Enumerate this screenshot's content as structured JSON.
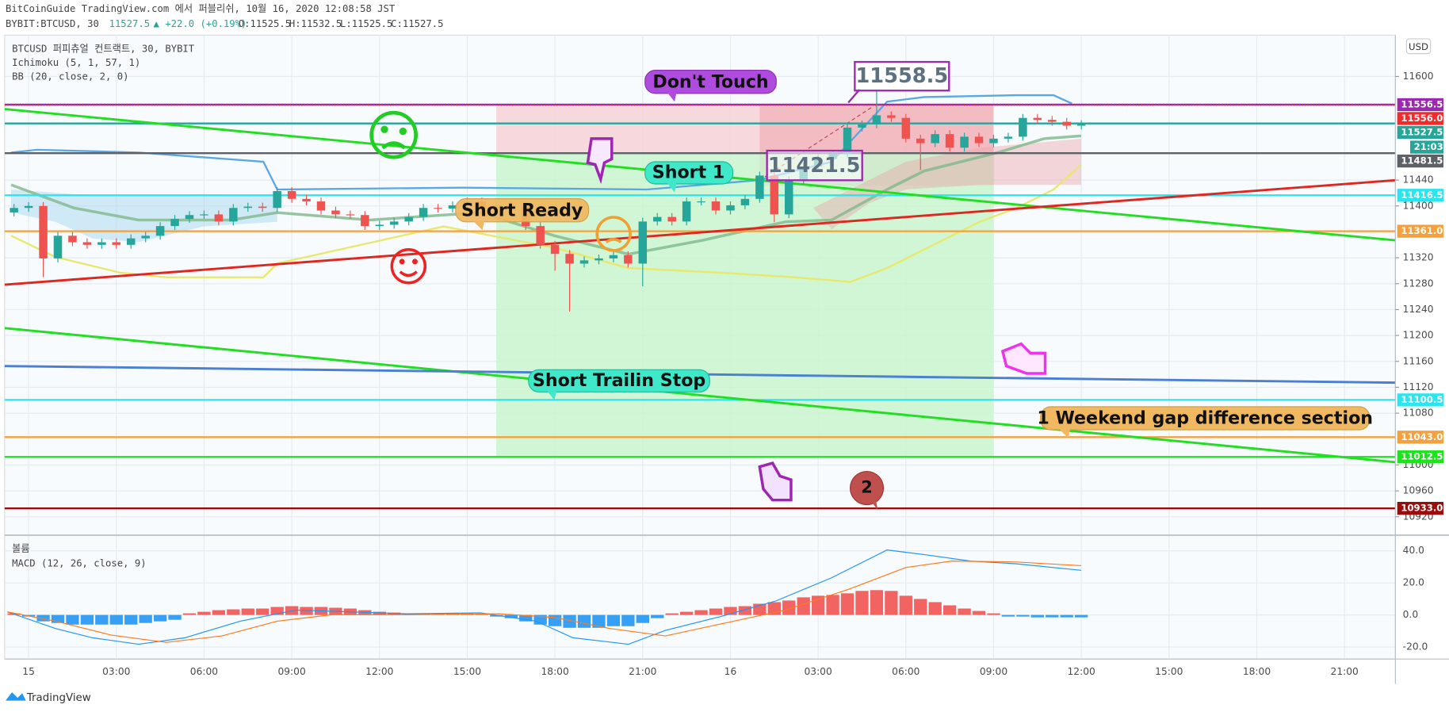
{
  "header": {
    "line1": "BitCoinGuide TradingView.com 에서 퍼블리쉬, 10월 16, 2020 12:08:58 JST",
    "symbol": "BYBIT:BTCUSD, 30",
    "price": "11527.5",
    "change": "▲ +22.0 (+0.19%)",
    "ohlc": [
      "O:11525.5",
      "H:11532.5",
      "L:11525.5",
      "C:11527.5"
    ]
  },
  "footer": {
    "brand": "TradingView"
  },
  "chart_data": [
    {
      "type": "candlestick",
      "title": "BTCUSD 퍼피츄얼 컨트랙트, 30, BYBIT",
      "indicators": [
        "Ichimoku (5, 1, 57, 1)",
        "BB (20, close, 2, 0)"
      ],
      "currency": "USD",
      "countdown": "21:03",
      "color_up": "#26a69a",
      "color_down": "#ef5350",
      "grid": true,
      "x": [
        -0.5,
        0,
        0.5,
        1,
        1.5,
        2,
        2.5,
        3,
        3.5,
        4,
        4.5,
        5,
        5.5,
        6,
        6.5,
        7,
        7.5,
        8,
        8.5,
        9,
        9.5,
        10,
        10.5,
        11,
        11.5,
        12,
        12.5,
        13,
        13.5,
        14,
        14.5,
        15,
        15.5,
        16,
        16.5,
        17,
        17.5,
        18,
        18.5,
        19,
        19.5,
        20,
        20.5,
        21,
        21.5,
        22,
        22.5,
        23,
        23.5,
        24,
        24.5,
        25,
        25.5,
        26,
        26.5,
        27,
        27.5,
        28,
        28.5,
        29,
        29.5,
        30,
        30.5,
        31,
        31.5,
        32,
        32.5,
        33,
        33.5,
        34,
        34.5,
        35,
        35.5,
        36
      ],
      "open": [
        11390,
        11397,
        11400,
        11319,
        11354,
        11344,
        11340,
        11344,
        11340,
        11350,
        11354,
        11369,
        11380,
        11386,
        11387,
        11376,
        11397,
        11399,
        11397,
        11423,
        11411,
        11407,
        11393,
        11387,
        11386,
        11369,
        11371,
        11376,
        11383,
        11397,
        11396,
        11401,
        11407,
        11397,
        11401,
        11399,
        11369,
        11340,
        11326,
        11311,
        11316,
        11319,
        11324,
        11311,
        11376,
        11383,
        11376,
        11407,
        11407,
        11393,
        11401,
        11411,
        11447,
        11387,
        11440,
        11461,
        11473,
        11480,
        11521,
        11526,
        11540,
        11536,
        11504,
        11497,
        11511,
        11490,
        11507,
        11497,
        11504,
        11507,
        11536,
        11533,
        11530,
        11524
      ],
      "high": [
        11403,
        11406,
        11406,
        11360,
        11360,
        11350,
        11350,
        11350,
        11356,
        11360,
        11375,
        11386,
        11392,
        11393,
        11393,
        11403,
        11405,
        11405,
        11429,
        11429,
        11417,
        11413,
        11399,
        11393,
        11392,
        11377,
        11382,
        11389,
        11403,
        11403,
        11407,
        11413,
        11413,
        11407,
        11407,
        11405,
        11375,
        11346,
        11332,
        11322,
        11325,
        11330,
        11330,
        11382,
        11389,
        11389,
        11413,
        11413,
        11413,
        11407,
        11417,
        11453,
        11453,
        11446,
        11467,
        11479,
        11486,
        11527,
        11532,
        11620,
        11546,
        11542,
        11510,
        11517,
        11517,
        11513,
        11513,
        11510,
        11513,
        11542,
        11542,
        11539,
        11536,
        11532.5
      ],
      "low": [
        11384,
        11391,
        11290,
        11313,
        11338,
        11334,
        11334,
        11334,
        11334,
        11344,
        11348,
        11363,
        11374,
        11380,
        11370,
        11370,
        11391,
        11391,
        11391,
        11405,
        11401,
        11387,
        11381,
        11380,
        11363,
        11363,
        11365,
        11370,
        11377,
        11390,
        11390,
        11395,
        11391,
        11391,
        11393,
        11363,
        11334,
        11300,
        11237,
        11305,
        11310,
        11313,
        11305,
        11276,
        11370,
        11370,
        11370,
        11401,
        11387,
        11387,
        11395,
        11405,
        11375,
        11381,
        11434,
        11455,
        11467,
        11474,
        11515,
        11520,
        11530,
        11498,
        11455,
        11491,
        11484,
        11484,
        11491,
        11491,
        11498,
        11501,
        11527,
        11524,
        11518,
        11518
      ],
      "close": [
        11397,
        11400,
        11319,
        11354,
        11344,
        11340,
        11344,
        11340,
        11350,
        11354,
        11369,
        11380,
        11386,
        11387,
        11376,
        11397,
        11399,
        11397,
        11423,
        11411,
        11407,
        11393,
        11387,
        11386,
        11369,
        11371,
        11376,
        11383,
        11397,
        11396,
        11401,
        11407,
        11397,
        11401,
        11399,
        11369,
        11340,
        11326,
        11311,
        11316,
        11319,
        11324,
        11311,
        11376,
        11383,
        11376,
        11407,
        11407,
        11393,
        11401,
        11411,
        11447,
        11387,
        11440,
        11461,
        11473,
        11480,
        11521,
        11526,
        11540,
        11536,
        11504,
        11497,
        11511,
        11490,
        11507,
        11497,
        11504,
        11507,
        11536,
        11533,
        11530,
        11524,
        11527.5
      ],
      "xlim": [
        -0.82,
        46.74
      ],
      "xticks": [
        {
          "value": 0,
          "label": "15"
        },
        {
          "value": 3,
          "label": "03:00"
        },
        {
          "value": 6,
          "label": "06:00"
        },
        {
          "value": 9,
          "label": "09:00"
        },
        {
          "value": 12,
          "label": "12:00"
        },
        {
          "value": 15,
          "label": "15:00"
        },
        {
          "value": 18,
          "label": "18:00"
        },
        {
          "value": 21,
          "label": "21:00"
        },
        {
          "value": 24,
          "label": "16"
        },
        {
          "value": 27,
          "label": "03:00"
        },
        {
          "value": 30,
          "label": "06:00"
        },
        {
          "value": 33,
          "label": "09:00"
        },
        {
          "value": 36,
          "label": "12:00"
        },
        {
          "value": 39,
          "label": "15:00"
        },
        {
          "value": 42,
          "label": "18:00"
        },
        {
          "value": 45,
          "label": "21:00"
        }
      ],
      "ylim": [
        10893,
        11661
      ],
      "yticks": [
        11600,
        11440,
        11400,
        11320,
        11280,
        11240,
        11200,
        11160,
        11120,
        11080,
        11000,
        10960,
        10920
      ],
      "price_lines": [
        {
          "price": 11556.5,
          "label": "11556.5",
          "color": "#9c27b0"
        },
        {
          "price": 11556,
          "label": "11556.0",
          "color": "#ef2b2b"
        },
        {
          "price": 11527.5,
          "label": "11527.5",
          "color": "#26a69a"
        },
        {
          "price": 11481.5,
          "label": "11481.5",
          "color": "#5d6066"
        },
        {
          "price": 11416.5,
          "label": "11416.5",
          "color": "#28e6f0"
        },
        {
          "price": 11361,
          "label": "11361.0",
          "color": "#f5a03c"
        },
        {
          "price": 11100.5,
          "label": "11100.5",
          "color": "#28e6f0"
        },
        {
          "price": 11043,
          "label": "11043.0",
          "color": "#f5a03c"
        },
        {
          "price": 11012.5,
          "label": "11012.5",
          "color": "#19e619"
        },
        {
          "price": 10933,
          "label": "10933.0",
          "color": "#9b0d0d"
        }
      ],
      "annotations": [
        "Don't Touch",
        "11558.5",
        "Short 1",
        "11421.5",
        "Short Ready",
        "Short Trailin Stop",
        "1 Weekend gap difference section",
        "2"
      ]
    },
    {
      "type": "bar",
      "indicators": [
        "볼륨",
        "MACD (12, 26, close, 9)"
      ],
      "color_up": "#ef5350",
      "color_down": "#2196f3",
      "x": [
        -0.5,
        0,
        0.5,
        1,
        1.5,
        2,
        2.5,
        3,
        3.5,
        4,
        4.5,
        5,
        5.5,
        6,
        6.5,
        7,
        7.5,
        8,
        8.5,
        9,
        9.5,
        10,
        10.5,
        11,
        11.5,
        12,
        12.5,
        13,
        13.5,
        14,
        14.5,
        15,
        15.5,
        16,
        16.5,
        17,
        17.5,
        18,
        18.5,
        19,
        19.5,
        20,
        20.5,
        21,
        21.5,
        22,
        22.5,
        23,
        23.5,
        24,
        24.5,
        25,
        25.5,
        26,
        26.5,
        27,
        27.5,
        28,
        28.5,
        29,
        29.5,
        30,
        30.5,
        31,
        31.5,
        32,
        32.5,
        33,
        33.5,
        34,
        34.5,
        35,
        35.5,
        36
      ],
      "values": [
        1,
        -1,
        -4,
        -5,
        -6,
        -6,
        -6,
        -6,
        -6,
        -5,
        -4,
        -3,
        1,
        2,
        3,
        3.5,
        4,
        4,
        5,
        5.5,
        5,
        5,
        4.5,
        4,
        3,
        2,
        1.5,
        1,
        1,
        1,
        1,
        1,
        0.5,
        -1,
        -2,
        -4,
        -6,
        -7,
        -8,
        -8,
        -8,
        -7,
        -7,
        -5,
        -2,
        1,
        2,
        3,
        4,
        5,
        5.5,
        7,
        8,
        9,
        11,
        12,
        12.5,
        13.5,
        15,
        15.5,
        15,
        12,
        10,
        8,
        6,
        4,
        2.5,
        1,
        -1,
        -1,
        -1.5,
        -1.5,
        -1.5,
        -1.5
      ],
      "ylim": [
        -27.5,
        49.2
      ],
      "yticks": [
        {
          "value": 40,
          "label": "40.0"
        },
        {
          "value": 20,
          "label": "20.0"
        },
        {
          "value": 0,
          "label": "0.0"
        },
        {
          "value": -20,
          "label": "-20.0"
        }
      ]
    }
  ]
}
